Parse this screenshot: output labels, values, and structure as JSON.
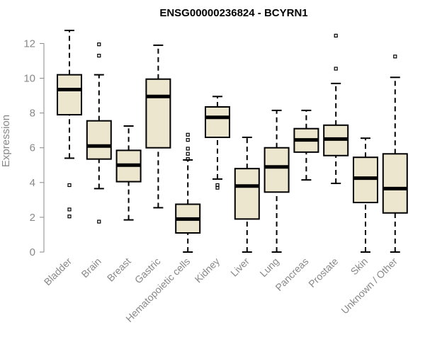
{
  "chart_data": {
    "type": "box",
    "title": "ENSG00000236824 - BCYRN1",
    "ylabel": "Expression",
    "xlabel": "",
    "ylim": [
      0,
      12.5
    ],
    "yticks": [
      0,
      2,
      4,
      6,
      8,
      10,
      12
    ],
    "box_fill": "#EDE6CF",
    "box_stroke": "#000000",
    "categories": [
      "Bladder",
      "Brain",
      "Breast",
      "Gastric",
      "Hematopoietic cells",
      "Kidney",
      "Liver",
      "Lung",
      "Pancreas",
      "Prostate",
      "Skin",
      "Unknown / Other"
    ],
    "boxes": [
      {
        "min": 5.4,
        "q1": 7.9,
        "median": 9.35,
        "q3": 10.2,
        "max": 12.75,
        "outliers": [
          3.85,
          2.45,
          2.05
        ]
      },
      {
        "min": 3.65,
        "q1": 5.35,
        "median": 6.1,
        "q3": 7.55,
        "max": 10.2,
        "outliers": [
          11.95,
          11.3,
          1.75
        ]
      },
      {
        "min": 1.85,
        "q1": 4.05,
        "median": 5.0,
        "q3": 5.85,
        "max": 7.25,
        "outliers": []
      },
      {
        "min": 2.55,
        "q1": 6.0,
        "median": 8.95,
        "q3": 9.95,
        "max": 11.9,
        "outliers": []
      },
      {
        "min": 0.0,
        "q1": 1.1,
        "median": 1.9,
        "q3": 2.75,
        "max": 5.3,
        "outliers": [
          6.75,
          6.45,
          5.95,
          5.65,
          5.35
        ]
      },
      {
        "min": 4.2,
        "q1": 6.6,
        "median": 7.75,
        "q3": 8.35,
        "max": 8.95,
        "outliers": [
          3.85,
          3.7
        ]
      },
      {
        "min": 0.0,
        "q1": 1.9,
        "median": 3.8,
        "q3": 4.8,
        "max": 6.6,
        "outliers": []
      },
      {
        "min": 0.0,
        "q1": 3.45,
        "median": 4.9,
        "q3": 6.0,
        "max": 8.15,
        "outliers": []
      },
      {
        "min": 4.15,
        "q1": 5.75,
        "median": 6.45,
        "q3": 7.1,
        "max": 8.15,
        "outliers": []
      },
      {
        "min": 3.95,
        "q1": 5.55,
        "median": 6.5,
        "q3": 7.3,
        "max": 9.7,
        "outliers": [
          12.45,
          10.55
        ]
      },
      {
        "min": 0.0,
        "q1": 2.85,
        "median": 4.25,
        "q3": 5.45,
        "max": 6.55,
        "outliers": []
      },
      {
        "min": 0.0,
        "q1": 2.25,
        "median": 3.65,
        "q3": 5.65,
        "max": 10.05,
        "outliers": [
          11.25
        ]
      }
    ]
  }
}
